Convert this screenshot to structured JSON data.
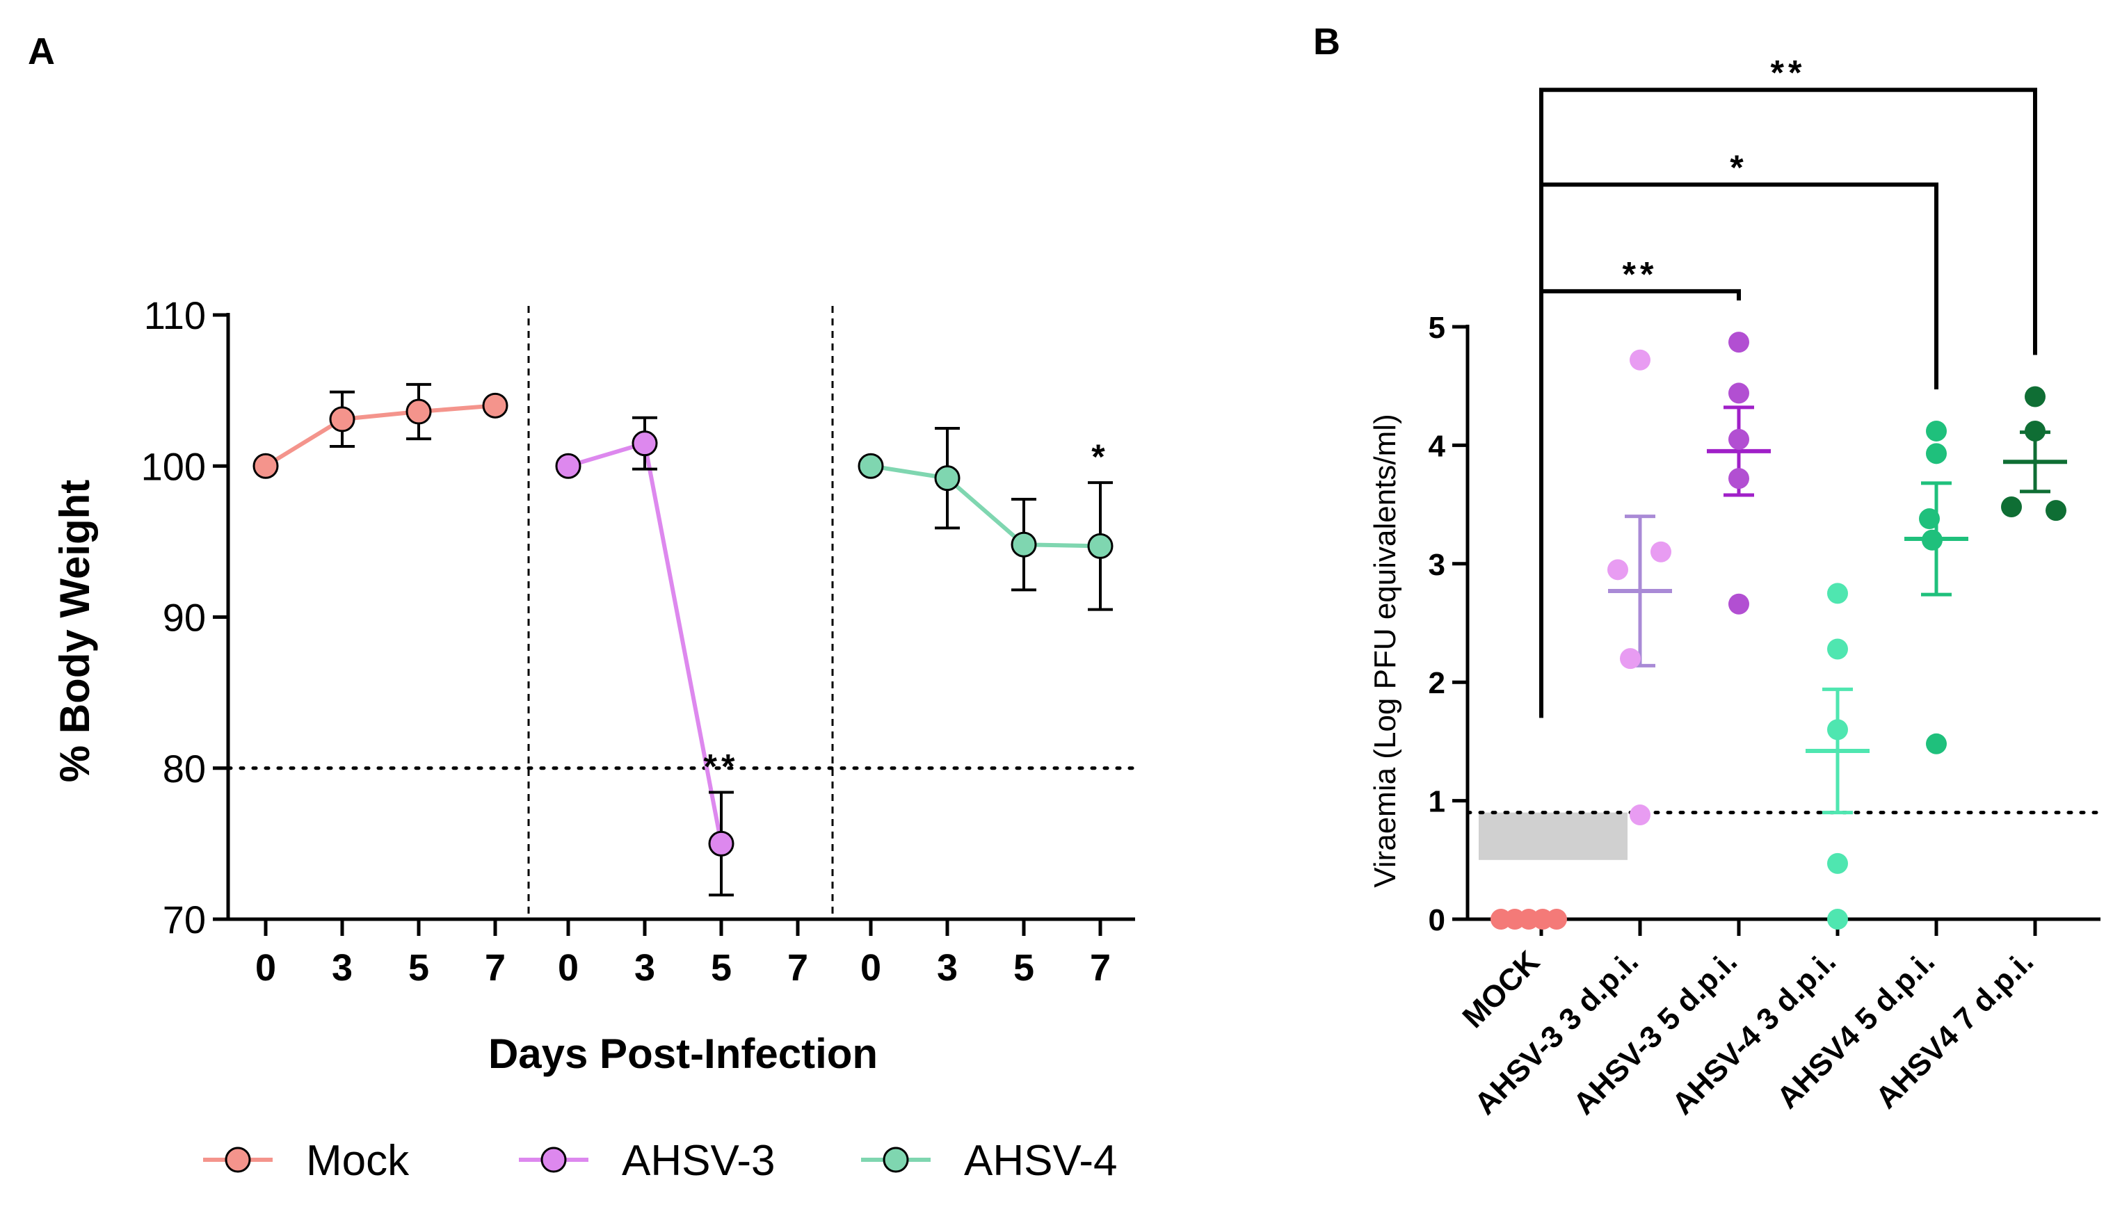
{
  "chart_data": [
    {
      "panel": "A",
      "type": "line",
      "xlabel": "Days Post-Infection",
      "ylabel": "% Body Weight",
      "ylim": [
        70,
        110
      ],
      "yticks": [
        "70",
        "80",
        "90",
        "100",
        "110"
      ],
      "threshold": 80,
      "groups": [
        {
          "name": "Mock",
          "color": "#f4948c",
          "ticks": [
            "0",
            "3",
            "5",
            "7"
          ],
          "points": [
            {
              "day": 0,
              "mean": 100.0,
              "err": 0
            },
            {
              "day": 3,
              "mean": 103.1,
              "err": 1.8
            },
            {
              "day": 5,
              "mean": 103.6,
              "err": 1.8
            },
            {
              "day": 7,
              "mean": 104.0,
              "err": 0
            }
          ],
          "annotation": null
        },
        {
          "name": "AHSV-3",
          "color": "#dd88ee",
          "ticks": [
            "0",
            "3",
            "5",
            "7"
          ],
          "points": [
            {
              "day": 0,
              "mean": 100.0,
              "err": 0
            },
            {
              "day": 3,
              "mean": 101.5,
              "err": 1.7
            },
            {
              "day": 5,
              "mean": 75.0,
              "err": 3.4
            }
          ],
          "annotation": {
            "text": "**",
            "day": 5
          }
        },
        {
          "name": "AHSV-4",
          "color": "#7fd6b0",
          "ticks": [
            "0",
            "3",
            "5",
            "7"
          ],
          "points": [
            {
              "day": 0,
              "mean": 100.0,
              "err": 0
            },
            {
              "day": 3,
              "mean": 99.2,
              "err": 3.3
            },
            {
              "day": 5,
              "mean": 94.8,
              "err": 3.0
            },
            {
              "day": 7,
              "mean": 94.7,
              "err": 4.2
            }
          ],
          "annotation": {
            "text": "*",
            "day": 7
          }
        }
      ],
      "legend": [
        "Mock",
        "AHSV-3",
        "AHSV-4"
      ]
    },
    {
      "panel": "B",
      "type": "scatter",
      "ylabel": "Viraemia (Log PFU equivalents/ml)",
      "ylim": [
        0,
        5
      ],
      "yticks": [
        "0",
        "1",
        "2",
        "3",
        "4",
        "5"
      ],
      "limit_of_detection": 0.9,
      "shaded_range": [
        0.5,
        0.9
      ],
      "groups": [
        {
          "name": "MOCK",
          "color": "#f47a78",
          "mean_color": "#f47a78",
          "points": [
            0,
            0,
            0,
            0,
            0
          ],
          "mean": 0.0,
          "sem": 0.0
        },
        {
          "name": "AHSV-3 3 d.p.i.",
          "color": "#e89cf2",
          "mean_color": "#a98ad6",
          "points": [
            4.72,
            2.95,
            3.1,
            2.2,
            0.88
          ],
          "mean": 2.77,
          "sem": 0.63
        },
        {
          "name": "AHSV-3 5 d.p.i.",
          "color": "#b24fd2",
          "mean_color": "#a020c8",
          "points": [
            4.87,
            4.44,
            4.05,
            3.72,
            2.66
          ],
          "mean": 3.95,
          "sem": 0.37
        },
        {
          "name": "AHSV-4 3 d.p.i.",
          "color": "#4fe6b0",
          "mean_color": "#4fe6b0",
          "points": [
            2.75,
            2.28,
            1.6,
            0.47,
            0.0
          ],
          "mean": 1.42,
          "sem": 0.52
        },
        {
          "name": "AHSV4 5 d.p.i.",
          "color": "#1fc07c",
          "mean_color": "#1fc07c",
          "points": [
            4.12,
            3.93,
            3.38,
            3.2,
            1.48
          ],
          "mean": 3.21,
          "sem": 0.47
        },
        {
          "name": "AHSV4 7 d.p.i.",
          "color": "#0f6e34",
          "mean_color": "#0f6e34",
          "points": [
            4.41,
            4.12,
            3.48,
            3.45
          ],
          "mean": 3.86,
          "sem": 0.25
        }
      ],
      "comparisons": [
        {
          "from": "MOCK",
          "to": "AHSV-3 5 d.p.i.",
          "label": "**"
        },
        {
          "from": "MOCK",
          "to": "AHSV4 5 d.p.i.",
          "label": "*"
        },
        {
          "from": "MOCK",
          "to": "AHSV4 7 d.p.i.",
          "label": "**"
        }
      ]
    }
  ],
  "labels": {
    "panel_a": "A",
    "panel_b": "B"
  }
}
